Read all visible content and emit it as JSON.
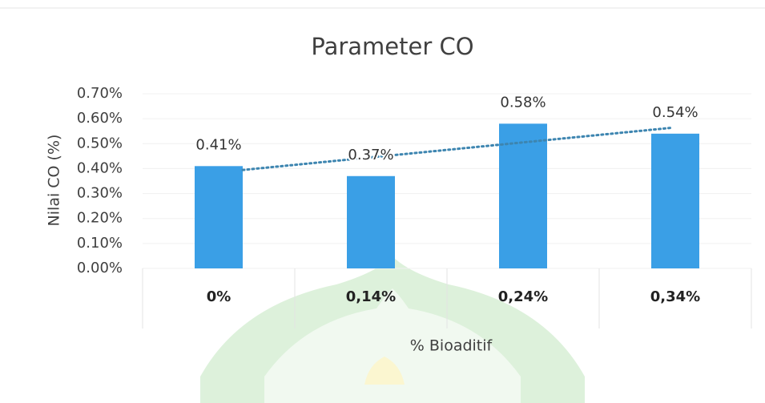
{
  "chart_data": {
    "type": "bar",
    "title": "Parameter CO",
    "x_label": "% Bioaditif",
    "y_label": "Nilai CO (%)",
    "categories": [
      "0%",
      "0,14%",
      "0,24%",
      "0,34%"
    ],
    "values": [
      0.41,
      0.37,
      0.58,
      0.54
    ],
    "value_labels": [
      "0.41%",
      "0.37%",
      "0.58%",
      "0.54%"
    ],
    "color": "#3a9fe6",
    "ylim": [
      0,
      0.7
    ],
    "yticks": [
      {
        "value": 0,
        "label": "0.00%"
      },
      {
        "value": 0.1,
        "label": "0.10%"
      },
      {
        "value": 0.2,
        "label": "0.20%"
      },
      {
        "value": 0.3,
        "label": "0.30%"
      },
      {
        "value": 0.4,
        "label": "0.40%"
      },
      {
        "value": 0.5,
        "label": "0.50%"
      },
      {
        "value": 0.6,
        "label": "0.60%"
      },
      {
        "value": 0.7,
        "label": "0.70%"
      }
    ],
    "grid": true,
    "trendline": "linear",
    "trendline_color": "#3d85b0"
  }
}
